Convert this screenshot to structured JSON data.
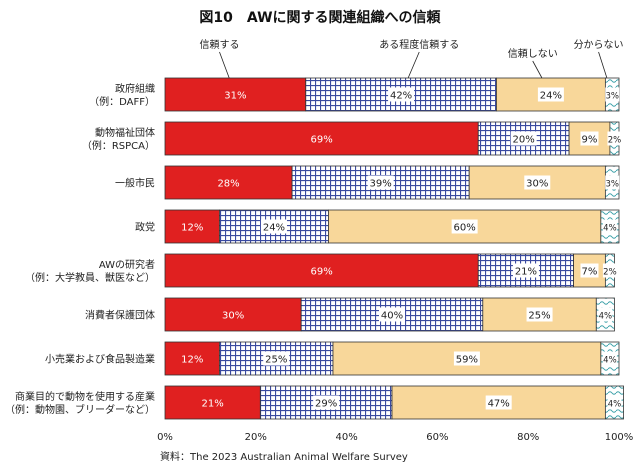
{
  "chart_data": {
    "type": "bar",
    "orientation": "horizontal",
    "stacked": true,
    "percent": true,
    "title": "図10　AWに関する関連組織への信頼",
    "categories": [
      [
        "政府組織",
        "（例：DAFF）"
      ],
      [
        "動物福祉団体",
        "（例：RSPCA）"
      ],
      [
        "一般市民"
      ],
      [
        "政党"
      ],
      [
        "AWの研究者",
        "（例：大学教員、獣医など）"
      ],
      [
        "消費者保護団体"
      ],
      [
        "小売業および食品製造業"
      ],
      [
        "商業目的で動物を使用する産業",
        "（例：動物園、ブリーダーなど）"
      ]
    ],
    "series": [
      {
        "name": "信頼する",
        "color": "#e02020",
        "pattern": "solid",
        "values": [
          31,
          69,
          28,
          12,
          69,
          30,
          12,
          21
        ]
      },
      {
        "name": "ある程度信頼する",
        "color": "#3a4aa0",
        "pattern": "grid",
        "values": [
          42,
          20,
          39,
          24,
          21,
          40,
          25,
          29
        ]
      },
      {
        "name": "信頼しない",
        "color": "#f8d79a",
        "pattern": "solid",
        "values": [
          24,
          9,
          30,
          60,
          7,
          25,
          59,
          47
        ]
      },
      {
        "name": "分からない",
        "color": "#3aa0a8",
        "pattern": "wave",
        "values": [
          3,
          2,
          3,
          4,
          2,
          4,
          4,
          4
        ]
      }
    ],
    "x_ticks": [
      "0%",
      "20%",
      "40%",
      "60%",
      "80%",
      "100%"
    ],
    "xlim": [
      0,
      100
    ],
    "source": "資料：The 2023 Australian Animal Welfare Survey",
    "legend_placement": "top, labels above bars with leader lines"
  }
}
